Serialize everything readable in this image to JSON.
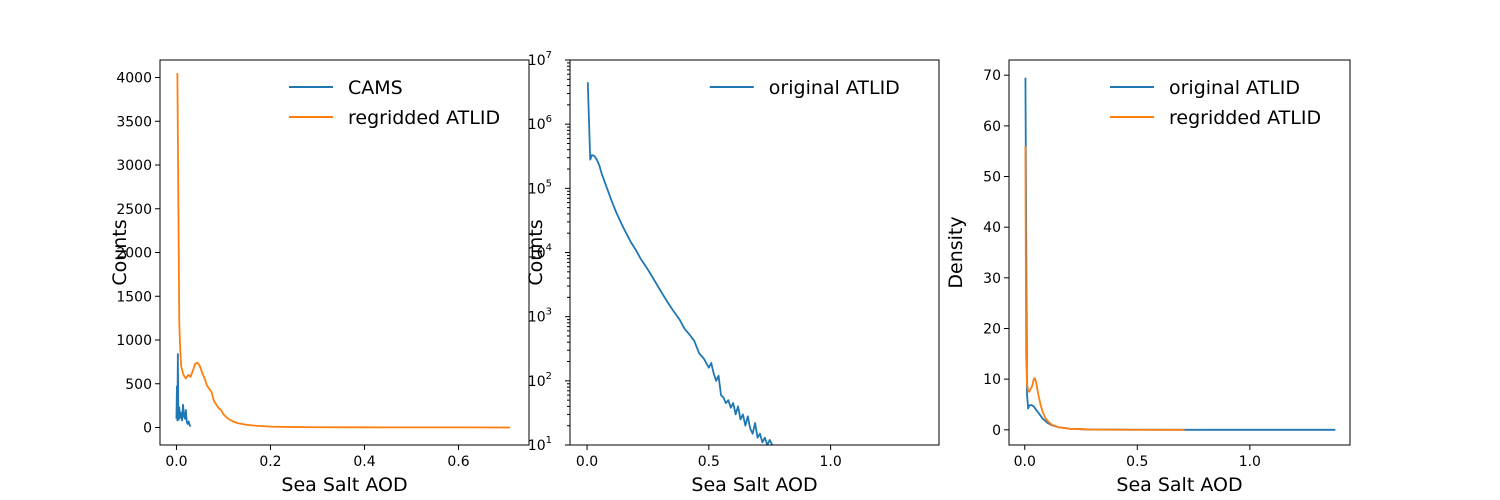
{
  "chart_data": [
    {
      "type": "line",
      "xlabel": "Sea Salt AOD",
      "ylabel": "Counts",
      "xlim": [
        -0.035,
        0.75
      ],
      "ylim": [
        -200,
        4200
      ],
      "x_ticks": [
        0.0,
        0.2,
        0.4,
        0.6
      ],
      "x_tick_labels": [
        "0.0",
        "0.2",
        "0.4",
        "0.6"
      ],
      "y_ticks": [
        0,
        500,
        1000,
        1500,
        2000,
        2500,
        3000,
        3500,
        4000
      ],
      "y_tick_labels": [
        "0",
        "500",
        "1000",
        "1500",
        "2000",
        "2500",
        "3000",
        "3500",
        "4000"
      ],
      "y_scale": "linear",
      "legend": "top-right",
      "series": [
        {
          "name": "CAMS",
          "color": "#1f77b4",
          "x": [
            0.0,
            0.001,
            0.002,
            0.003,
            0.004,
            0.005,
            0.006,
            0.008,
            0.01,
            0.012,
            0.014,
            0.016,
            0.018,
            0.02,
            0.022,
            0.024,
            0.026,
            0.028,
            0.03
          ],
          "y": [
            100,
            470,
            80,
            840,
            150,
            90,
            230,
            110,
            170,
            80,
            260,
            130,
            100,
            200,
            60,
            40,
            70,
            30,
            10
          ]
        },
        {
          "name": "regridded ATLID",
          "color": "#ff7f0e",
          "x": [
            0.002,
            0.004,
            0.006,
            0.008,
            0.01,
            0.015,
            0.02,
            0.025,
            0.03,
            0.035,
            0.04,
            0.045,
            0.05,
            0.055,
            0.06,
            0.065,
            0.07,
            0.075,
            0.08,
            0.085,
            0.09,
            0.095,
            0.1,
            0.11,
            0.12,
            0.13,
            0.15,
            0.17,
            0.2,
            0.25,
            0.3,
            0.4,
            0.5,
            0.6,
            0.71
          ],
          "y": [
            4050,
            2600,
            1200,
            900,
            700,
            600,
            560,
            600,
            580,
            650,
            730,
            740,
            700,
            620,
            560,
            480,
            440,
            400,
            300,
            260,
            220,
            200,
            150,
            100,
            70,
            50,
            30,
            20,
            10,
            5,
            3,
            2,
            1,
            1,
            0
          ]
        }
      ]
    },
    {
      "type": "line",
      "xlabel": "Sea Salt AOD",
      "ylabel": "Counts",
      "xlim": [
        -0.07,
        1.445
      ],
      "ylim": [
        10,
        10000000
      ],
      "x_ticks": [
        0.0,
        0.5,
        1.0
      ],
      "x_tick_labels": [
        "0.0",
        "0.5",
        "1.0"
      ],
      "y_ticks": [
        10,
        100,
        1000,
        10000,
        100000,
        1000000,
        10000000
      ],
      "y_tick_labels": [
        "10",
        "10",
        "10",
        "10",
        "10",
        "10",
        "10"
      ],
      "y_tick_exponents": [
        "1",
        "2",
        "3",
        "4",
        "5",
        "6",
        "7"
      ],
      "y_scale": "log",
      "legend": "top-right",
      "series": [
        {
          "name": "original ATLID",
          "color": "#1f77b4",
          "x": [
            0.003,
            0.013,
            0.02,
            0.03,
            0.04,
            0.05,
            0.06,
            0.08,
            0.1,
            0.12,
            0.15,
            0.18,
            0.2,
            0.22,
            0.25,
            0.28,
            0.3,
            0.33,
            0.35,
            0.38,
            0.4,
            0.42,
            0.44,
            0.46,
            0.48,
            0.5,
            0.51,
            0.52,
            0.53,
            0.54,
            0.55,
            0.56,
            0.57,
            0.58,
            0.59,
            0.6,
            0.61,
            0.62,
            0.63,
            0.64,
            0.65,
            0.66,
            0.67,
            0.68,
            0.69,
            0.7,
            0.71,
            0.72,
            0.73,
            0.74,
            0.75,
            0.76
          ],
          "y": [
            4500000,
            280000,
            330000,
            320000,
            280000,
            230000,
            170000,
            105000,
            65000,
            42000,
            24000,
            14500,
            11000,
            8000,
            5400,
            3500,
            2600,
            1700,
            1300,
            900,
            650,
            530,
            420,
            270,
            220,
            160,
            190,
            130,
            100,
            120,
            60,
            55,
            45,
            50,
            38,
            45,
            30,
            40,
            25,
            30,
            20,
            28,
            18,
            15,
            22,
            13,
            15,
            11,
            13,
            10,
            12,
            10
          ]
        }
      ]
    },
    {
      "type": "line",
      "xlabel": "Sea Salt AOD",
      "ylabel": "Density",
      "xlim": [
        -0.07,
        1.445
      ],
      "ylim": [
        -3.0,
        73.0
      ],
      "x_ticks": [
        0.0,
        0.5,
        1.0
      ],
      "x_tick_labels": [
        "0.0",
        "0.5",
        "1.0"
      ],
      "y_ticks": [
        0,
        10,
        20,
        30,
        40,
        50,
        60,
        70
      ],
      "y_tick_labels": [
        "0",
        "10",
        "20",
        "30",
        "40",
        "50",
        "60",
        "70"
      ],
      "y_scale": "linear",
      "legend": "top-right",
      "series": [
        {
          "name": "original ATLID",
          "color": "#1f77b4",
          "x": [
            0.003,
            0.01,
            0.015,
            0.02,
            0.03,
            0.04,
            0.05,
            0.06,
            0.08,
            0.1,
            0.12,
            0.15,
            0.2,
            0.3,
            0.5,
            0.8,
            1.0,
            1.2,
            1.38
          ],
          "y": [
            69.5,
            7.0,
            4.2,
            4.8,
            4.9,
            4.6,
            4.0,
            3.4,
            2.2,
            1.4,
            0.9,
            0.5,
            0.2,
            0.05,
            0.01,
            0.0,
            0.0,
            0.0,
            0.0
          ]
        },
        {
          "name": "regridded ATLID",
          "color": "#ff7f0e",
          "x": [
            0.003,
            0.006,
            0.01,
            0.015,
            0.02,
            0.025,
            0.03,
            0.035,
            0.04,
            0.045,
            0.05,
            0.06,
            0.07,
            0.08,
            0.09,
            0.1,
            0.12,
            0.15,
            0.2,
            0.3,
            0.5,
            0.71
          ],
          "y": [
            56.0,
            15.0,
            9.0,
            7.8,
            7.5,
            8.0,
            8.3,
            9.0,
            10.0,
            10.2,
            9.5,
            7.0,
            5.0,
            3.5,
            2.5,
            1.8,
            1.0,
            0.5,
            0.2,
            0.05,
            0.01,
            0.0
          ]
        }
      ]
    }
  ]
}
